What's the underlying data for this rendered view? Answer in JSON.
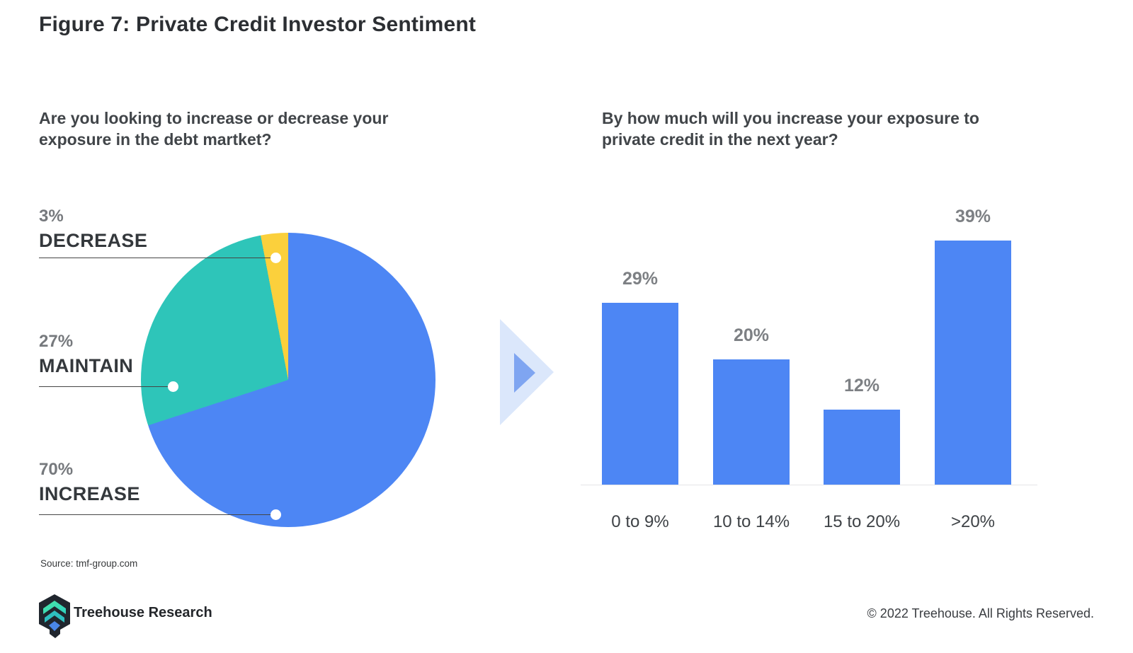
{
  "figure": {
    "title": "Figure 7: Private Credit Investor Sentiment"
  },
  "source_note": "Source: tmf-group.com",
  "footer": {
    "brand": "Treehouse Research",
    "copyright": "© 2022 Treehouse. All Rights Reserved."
  },
  "colors": {
    "pie_increase_blue": "#4d86f4",
    "pie_maintain_teal": "#2ec5b9",
    "pie_decrease_yellow": "#fbd03c",
    "bar_blue": "#4d86f4",
    "arrow_outer": "#dbe7fb",
    "arrow_inner": "#7fa5f1",
    "baseline_gray": "#e4e5e7",
    "label_gray": "#76797d",
    "label_dark": "#34383c"
  },
  "chart_data": [
    {
      "type": "pie",
      "title": "Are you looking to increase or decrease your exposure in the debt martket?",
      "segments": [
        {
          "label": "DECREASE",
          "value": 3,
          "value_label": "3%",
          "color": "#fbd03c"
        },
        {
          "label": "MAINTAIN",
          "value": 27,
          "value_label": "27%",
          "color": "#2ec5b9"
        },
        {
          "label": "INCREASE",
          "value": 70,
          "value_label": "70%",
          "color": "#4d86f4"
        }
      ],
      "layout": "labels with leader lines on left; slices drawn clockwise from 12 o'clock in order INCREASE, MAINTAIN, DECREASE"
    },
    {
      "type": "bar",
      "title": "By how much will you increase your exposure to private credit in the next year?",
      "categories": [
        "0 to 9%",
        "10 to 14%",
        "15 to 20%",
        ">20%"
      ],
      "values": [
        29,
        20,
        12,
        39
      ],
      "value_labels": [
        "29%",
        "20%",
        "12%",
        "39%"
      ],
      "bar_color": "#4d86f4",
      "ylim": [
        0,
        45
      ],
      "grid": false,
      "legend": "none"
    }
  ]
}
